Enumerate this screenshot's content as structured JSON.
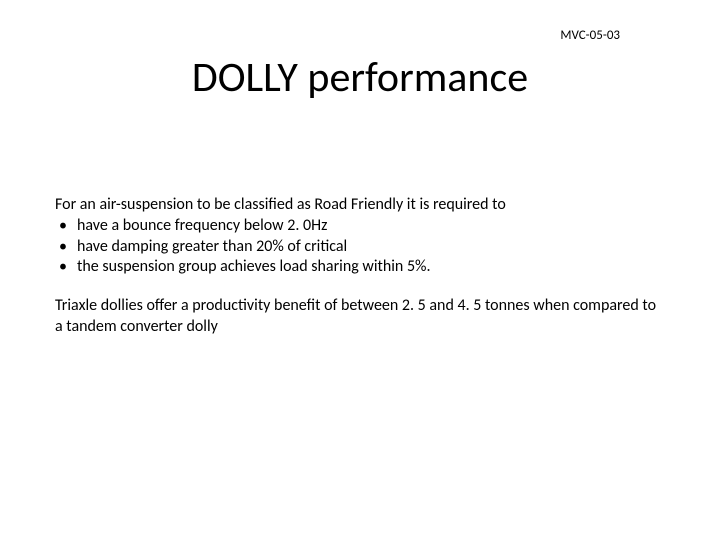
{
  "header": {
    "code": "MVC-05-03"
  },
  "slide": {
    "title": "DOLLY performance",
    "intro": "For an air-suspension to be classified as Road Friendly it is required to",
    "bullets": [
      "have a bounce frequency below 2. 0Hz",
      "have damping greater than 20% of critical",
      "the suspension group achieves load sharing within 5%."
    ],
    "paragraph": "Triaxle dollies offer a productivity benefit of between 2. 5 and 4. 5 tonnes when compared to a tandem converter dolly"
  },
  "style": {
    "background_color": "#ffffff",
    "text_color": "#000000",
    "title_fontsize": 42,
    "body_fontsize": 16,
    "code_fontsize": 13,
    "font_family": "Calibri"
  }
}
